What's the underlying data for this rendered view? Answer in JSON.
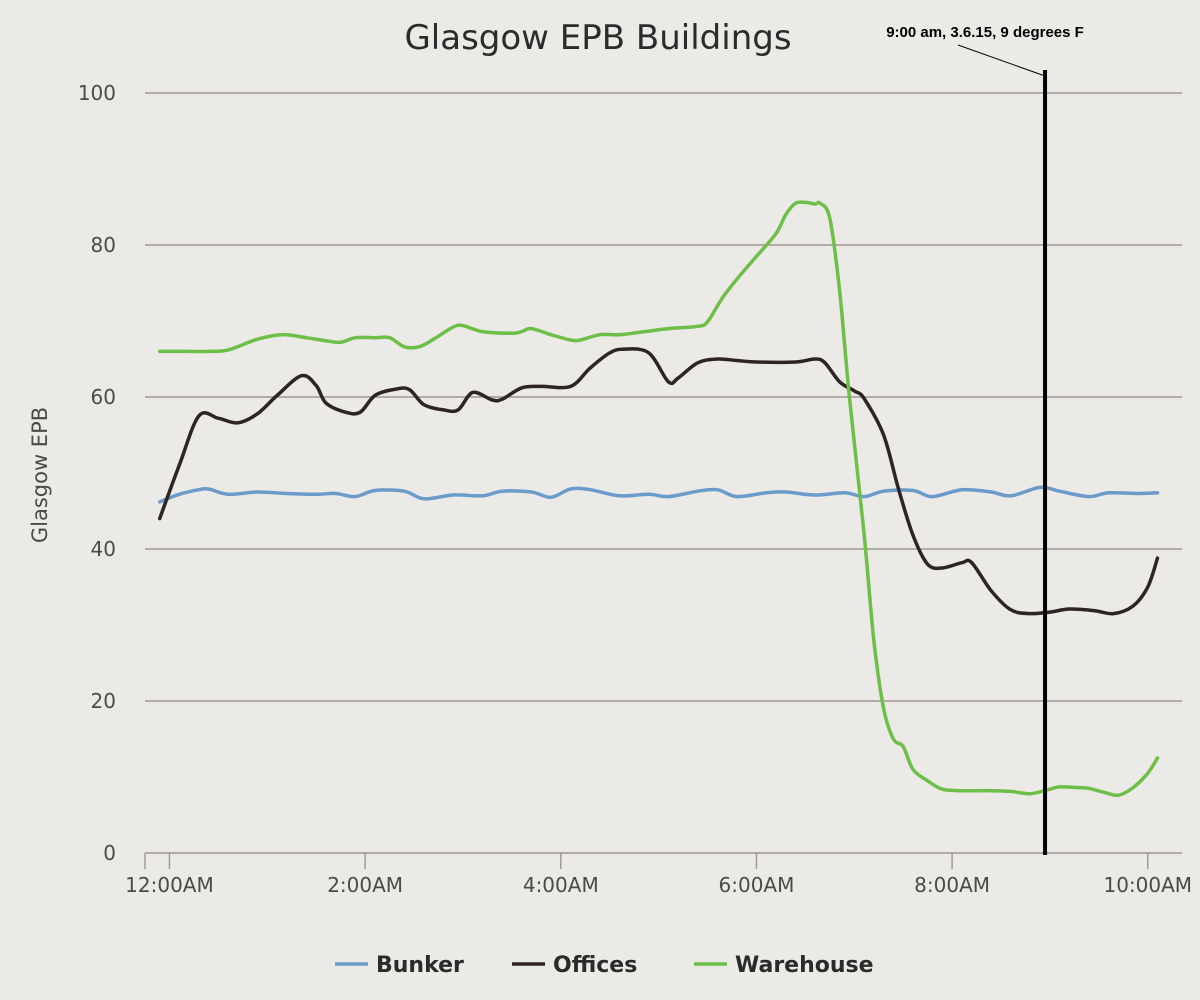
{
  "chart_data": {
    "type": "line",
    "title": "Glasgow EPB Buildings",
    "xlabel": "",
    "ylabel": "Glasgow EPB",
    "xlim": [
      -0.25,
      10.35
    ],
    "ylim": [
      0,
      100
    ],
    "grid": true,
    "legend_position": "bottom-center",
    "x_ticks": [
      {
        "value": 0,
        "label": "12:00AM"
      },
      {
        "value": 2,
        "label": "2:00AM"
      },
      {
        "value": 4,
        "label": "4:00AM"
      },
      {
        "value": 6,
        "label": "6:00AM"
      },
      {
        "value": 8,
        "label": "8:00AM"
      },
      {
        "value": 10,
        "label": "10:00AM"
      }
    ],
    "y_ticks": [
      0,
      20,
      40,
      60,
      80,
      100
    ],
    "series": [
      {
        "name": "Bunker",
        "color": "#6b9bcb",
        "points": [
          [
            -0.1,
            46.2
          ],
          [
            0.1,
            47.2
          ],
          [
            0.3,
            47.8
          ],
          [
            0.4,
            47.9
          ],
          [
            0.6,
            47.2
          ],
          [
            0.9,
            47.5
          ],
          [
            1.2,
            47.3
          ],
          [
            1.5,
            47.2
          ],
          [
            1.7,
            47.3
          ],
          [
            1.9,
            46.9
          ],
          [
            2.1,
            47.7
          ],
          [
            2.4,
            47.6
          ],
          [
            2.6,
            46.6
          ],
          [
            2.9,
            47.1
          ],
          [
            3.2,
            47.0
          ],
          [
            3.4,
            47.6
          ],
          [
            3.7,
            47.5
          ],
          [
            3.9,
            46.8
          ],
          [
            4.1,
            47.9
          ],
          [
            4.3,
            47.8
          ],
          [
            4.6,
            47.0
          ],
          [
            4.9,
            47.2
          ],
          [
            5.1,
            46.9
          ],
          [
            5.4,
            47.6
          ],
          [
            5.6,
            47.8
          ],
          [
            5.8,
            46.9
          ],
          [
            6.1,
            47.4
          ],
          [
            6.3,
            47.5
          ],
          [
            6.6,
            47.1
          ],
          [
            6.9,
            47.4
          ],
          [
            7.1,
            46.9
          ],
          [
            7.3,
            47.6
          ],
          [
            7.6,
            47.7
          ],
          [
            7.8,
            46.9
          ],
          [
            8.1,
            47.8
          ],
          [
            8.4,
            47.5
          ],
          [
            8.6,
            47.0
          ],
          [
            8.9,
            48.1
          ],
          [
            9.1,
            47.6
          ],
          [
            9.4,
            46.9
          ],
          [
            9.6,
            47.4
          ],
          [
            9.9,
            47.3
          ],
          [
            10.1,
            47.4
          ]
        ]
      },
      {
        "name": "Offices",
        "color": "#2e2422",
        "points": [
          [
            -0.1,
            44.0
          ],
          [
            0.1,
            51.0
          ],
          [
            0.3,
            57.5
          ],
          [
            0.5,
            57.2
          ],
          [
            0.7,
            56.6
          ],
          [
            0.9,
            57.8
          ],
          [
            1.1,
            60.2
          ],
          [
            1.35,
            62.8
          ],
          [
            1.5,
            61.5
          ],
          [
            1.6,
            59.2
          ],
          [
            1.8,
            58.0
          ],
          [
            1.95,
            58.0
          ],
          [
            2.1,
            60.2
          ],
          [
            2.3,
            61.0
          ],
          [
            2.45,
            61.0
          ],
          [
            2.6,
            59.0
          ],
          [
            2.8,
            58.3
          ],
          [
            2.95,
            58.3
          ],
          [
            3.1,
            60.6
          ],
          [
            3.3,
            59.6
          ],
          [
            3.4,
            59.7
          ],
          [
            3.6,
            61.2
          ],
          [
            3.8,
            61.4
          ],
          [
            4.1,
            61.4
          ],
          [
            4.3,
            63.8
          ],
          [
            4.5,
            65.8
          ],
          [
            4.65,
            66.3
          ],
          [
            4.9,
            65.8
          ],
          [
            5.1,
            62.0
          ],
          [
            5.2,
            62.5
          ],
          [
            5.4,
            64.5
          ],
          [
            5.6,
            65.0
          ],
          [
            5.8,
            64.8
          ],
          [
            6.0,
            64.6
          ],
          [
            6.4,
            64.6
          ],
          [
            6.6,
            65.0
          ],
          [
            6.7,
            64.5
          ],
          [
            6.85,
            62.0
          ],
          [
            7.0,
            60.8
          ],
          [
            7.1,
            59.8
          ],
          [
            7.3,
            55.0
          ],
          [
            7.45,
            48.0
          ],
          [
            7.6,
            41.8
          ],
          [
            7.75,
            38.0
          ],
          [
            7.9,
            37.5
          ],
          [
            8.1,
            38.2
          ],
          [
            8.2,
            38.2
          ],
          [
            8.4,
            34.5
          ],
          [
            8.6,
            32.0
          ],
          [
            8.8,
            31.5
          ],
          [
            9.0,
            31.7
          ],
          [
            9.2,
            32.1
          ],
          [
            9.45,
            31.9
          ],
          [
            9.65,
            31.5
          ],
          [
            9.85,
            32.5
          ],
          [
            10.0,
            35.0
          ],
          [
            10.1,
            38.8
          ]
        ]
      },
      {
        "name": "Warehouse",
        "color": "#6dbf48",
        "points": [
          [
            -0.1,
            66.0
          ],
          [
            0.2,
            66.0
          ],
          [
            0.4,
            66.0
          ],
          [
            0.6,
            66.2
          ],
          [
            0.9,
            67.6
          ],
          [
            1.15,
            68.2
          ],
          [
            1.4,
            67.8
          ],
          [
            1.6,
            67.4
          ],
          [
            1.75,
            67.2
          ],
          [
            1.9,
            67.8
          ],
          [
            2.1,
            67.8
          ],
          [
            2.25,
            67.8
          ],
          [
            2.4,
            66.6
          ],
          [
            2.55,
            66.6
          ],
          [
            2.7,
            67.6
          ],
          [
            2.9,
            69.2
          ],
          [
            3.0,
            69.4
          ],
          [
            3.2,
            68.6
          ],
          [
            3.5,
            68.4
          ],
          [
            3.6,
            68.6
          ],
          [
            3.7,
            69.0
          ],
          [
            3.9,
            68.2
          ],
          [
            4.1,
            67.5
          ],
          [
            4.2,
            67.5
          ],
          [
            4.4,
            68.2
          ],
          [
            4.6,
            68.2
          ],
          [
            4.8,
            68.5
          ],
          [
            5.1,
            69.0
          ],
          [
            5.4,
            69.3
          ],
          [
            5.5,
            69.9
          ],
          [
            5.65,
            73.0
          ],
          [
            5.8,
            75.5
          ],
          [
            6.0,
            78.5
          ],
          [
            6.2,
            81.5
          ],
          [
            6.3,
            84.0
          ],
          [
            6.4,
            85.5
          ],
          [
            6.5,
            85.6
          ],
          [
            6.6,
            85.4
          ],
          [
            6.65,
            85.5
          ],
          [
            6.75,
            83.5
          ],
          [
            6.85,
            74.0
          ],
          [
            6.95,
            60.0
          ],
          [
            7.1,
            42.0
          ],
          [
            7.2,
            28.0
          ],
          [
            7.3,
            19.0
          ],
          [
            7.4,
            15.0
          ],
          [
            7.5,
            14.0
          ],
          [
            7.6,
            11.0
          ],
          [
            7.75,
            9.5
          ],
          [
            7.9,
            8.4
          ],
          [
            8.1,
            8.2
          ],
          [
            8.4,
            8.2
          ],
          [
            8.6,
            8.1
          ],
          [
            8.8,
            7.8
          ],
          [
            9.0,
            8.4
          ],
          [
            9.1,
            8.7
          ],
          [
            9.3,
            8.6
          ],
          [
            9.4,
            8.5
          ],
          [
            9.55,
            8.0
          ],
          [
            9.7,
            7.6
          ],
          [
            9.85,
            8.6
          ],
          [
            10.0,
            10.5
          ],
          [
            10.1,
            12.5
          ]
        ]
      }
    ],
    "annotation": {
      "text": "9:00 am, 3.6.15, 9 degrees F",
      "x": 8.95,
      "marker_color": "#000000"
    }
  }
}
